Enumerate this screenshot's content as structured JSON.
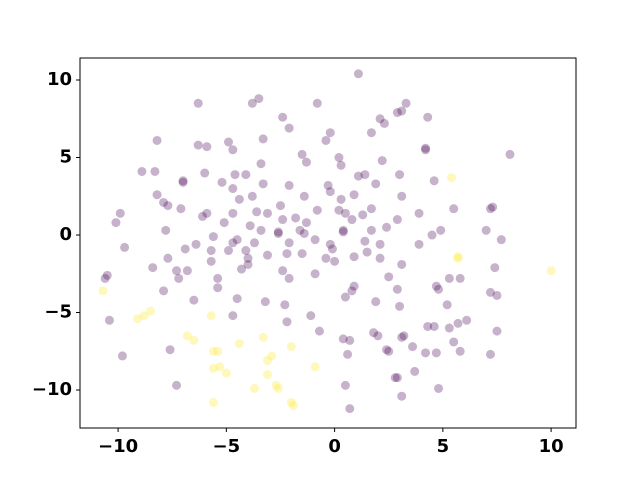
{
  "chart_data": {
    "type": "scatter",
    "xlim": [
      -11.76,
      11.15
    ],
    "ylim": [
      -12.45,
      11.42
    ],
    "xticks": [
      {
        "value": -10,
        "label": "−10"
      },
      {
        "value": -5,
        "label": "−5"
      },
      0,
      5,
      10
    ],
    "yticks": [
      {
        "value": -10,
        "label": "−10"
      },
      {
        "value": -5,
        "label": "−5"
      },
      0,
      5,
      10
    ],
    "grid": false,
    "series": [
      {
        "color": "#440154",
        "alpha": 0.3,
        "x": [
          1.1,
          -6.3,
          -3.8,
          -3.5,
          -0.8,
          3.3,
          3.1,
          2.9,
          -2.4,
          2.1,
          2.3,
          4.3,
          1.7,
          -2.1,
          -8.2,
          -3.3,
          -0.4,
          -0.2,
          -6.3,
          -5.9,
          -4.9,
          -4.7,
          4.2,
          4.2,
          -1.5,
          -1.3,
          0.2,
          -3.4,
          2.2,
          0.3,
          8.1,
          1.4,
          1.1,
          -8.9,
          -8.3,
          -7.0,
          -7.0,
          -4.6,
          -4.1,
          -6.0,
          3.0,
          4.6,
          -5.2,
          -3.3,
          -2.1,
          -0.3,
          1.9,
          -4.7,
          -8.2,
          -3.8,
          -1.4,
          -0.2,
          0.9,
          0.3,
          -7.9,
          3.1,
          -7.7,
          -4.4,
          -2.5,
          -0.8,
          0.2,
          1.7,
          5.5,
          7.3,
          7.2,
          -9.9,
          -7.1,
          -5.9,
          -6.1,
          -4.7,
          -3.6,
          -3.1,
          -1.8,
          0.5,
          0.8,
          1.3,
          3.9,
          2.9,
          -10.1,
          -5.1,
          -2.4,
          -1.3,
          -3.9,
          -3.4,
          -7.8,
          -2.6,
          -2.6,
          -1.6,
          -1.4,
          0.4,
          0.4,
          1.7,
          2.4,
          4.5,
          4.9,
          7.0,
          -4.5,
          -4.7,
          -5.6,
          -6.4,
          -4.1,
          -4.0,
          -3.7,
          -2.1,
          -0.9,
          -0.2,
          -0.1,
          1.4,
          2.1,
          3.9,
          7.7,
          -9.7,
          -6.9,
          -5.7,
          -4.9,
          -3.1,
          -2.2,
          -1.5,
          -0.4,
          0.9,
          1.5,
          2.1,
          -7.7,
          -5.7,
          -4.0,
          0.0,
          3.1,
          -8.4,
          -7.3,
          -6.8,
          -4.3,
          -2.4,
          -0.9,
          7.4,
          -10.5,
          -10.6,
          -7.2,
          -5.4,
          -2.1,
          2.5,
          5.3,
          5.8,
          0.9,
          0.8,
          -7.9,
          -5.4,
          2.9,
          4.7,
          4.8,
          7.2,
          7.5,
          -4.5,
          -6.5,
          -3.2,
          1.9,
          0.5,
          -10.4,
          -2.3,
          3.0,
          5.2,
          -4.7,
          -1.1,
          6.1,
          -2.2,
          4.3,
          4.6,
          5.7,
          5.3,
          -0.7,
          7.5,
          1.8,
          2.0,
          3.1,
          3.2,
          0.4,
          0.7,
          5.5,
          -7.6,
          2.4,
          2.5,
          3.6,
          5.8,
          4.2,
          4.7,
          7.2,
          -9.8,
          0.6,
          3.7,
          2.8,
          2.9,
          -7.3,
          0.5,
          4.8,
          3.1,
          0.7
        ],
        "values": [
          10.4,
          8.5,
          8.5,
          8.8,
          8.5,
          8.5,
          8.0,
          7.9,
          7.6,
          7.5,
          7.2,
          7.6,
          6.6,
          6.9,
          6.1,
          6.2,
          6.1,
          6.6,
          5.8,
          5.7,
          6.0,
          5.5,
          5.5,
          5.6,
          5.2,
          4.7,
          5.0,
          4.6,
          4.8,
          4.5,
          5.2,
          3.9,
          3.8,
          4.1,
          4.1,
          3.5,
          3.4,
          3.9,
          3.9,
          4.0,
          3.9,
          3.5,
          3.4,
          3.3,
          3.2,
          3.2,
          3.3,
          3.0,
          2.6,
          2.5,
          2.5,
          2.8,
          2.6,
          2.3,
          2.1,
          2.5,
          1.9,
          2.3,
          1.9,
          1.6,
          1.6,
          1.7,
          1.7,
          1.8,
          1.7,
          1.4,
          1.7,
          1.4,
          1.2,
          1.4,
          1.5,
          1.4,
          1.1,
          1.4,
          1.0,
          1.3,
          1.4,
          1.0,
          0.8,
          0.8,
          1.0,
          0.8,
          0.6,
          0.3,
          0.3,
          0.2,
          0.1,
          0.3,
          0.1,
          0.3,
          0.2,
          0.3,
          0.5,
          0.0,
          0.3,
          0.3,
          -0.3,
          -0.5,
          -0.1,
          -0.6,
          -1.0,
          -1.5,
          -0.5,
          -0.5,
          -0.3,
          -0.6,
          -0.9,
          -0.4,
          -0.6,
          -0.6,
          -0.3,
          -0.8,
          -0.9,
          -1.0,
          -1.0,
          -1.3,
          -1.2,
          -1.2,
          -1.5,
          -1.4,
          -1.1,
          -1.5,
          -1.5,
          -1.7,
          -1.9,
          -1.7,
          -1.9,
          -2.1,
          -2.3,
          -2.3,
          -2.2,
          -2.3,
          -2.5,
          -2.1,
          -2.6,
          -2.8,
          -2.8,
          -2.8,
          -2.8,
          -2.7,
          -2.8,
          -2.8,
          -3.3,
          -3.6,
          -3.6,
          -3.4,
          -3.5,
          -3.3,
          -3.5,
          -3.7,
          -3.9,
          -4.1,
          -4.2,
          -4.3,
          -4.3,
          -4.0,
          -5.5,
          -4.5,
          -4.6,
          -4.5,
          -5.2,
          -5.2,
          -5.5,
          -5.6,
          -5.9,
          -5.9,
          -5.7,
          -6.0,
          -6.2,
          -6.2,
          -6.3,
          -6.5,
          -6.6,
          -6.5,
          -6.7,
          -6.8,
          -6.9,
          -7.4,
          -7.4,
          -7.5,
          -7.2,
          -7.5,
          -7.6,
          -7.6,
          -7.7,
          -7.8,
          -7.7,
          -8.8,
          -9.2,
          -9.2,
          -9.7,
          -9.7,
          -9.9,
          -10.4,
          -11.2
        ]
      },
      {
        "color": "#fde725",
        "alpha": 0.3,
        "x": [
          5.4,
          5.7,
          5.7,
          10.0,
          -10.7,
          -8.5,
          -8.8,
          -9.1,
          -5.7,
          -6.8,
          -6.5,
          -3.3,
          -4.4,
          -5.6,
          -5.4,
          -2.0,
          -2.9,
          -3.1,
          -5.6,
          -5.3,
          -5.0,
          -0.9,
          -3.1,
          -3.7,
          -2.7,
          -2.6,
          -5.6,
          -2.0,
          -1.9
        ],
        "values": [
          3.7,
          -1.4,
          -1.5,
          -2.3,
          -3.6,
          -4.9,
          -5.2,
          -5.4,
          -5.2,
          -6.5,
          -6.8,
          -6.6,
          -7.0,
          -7.5,
          -7.5,
          -7.2,
          -7.8,
          -8.1,
          -8.6,
          -8.5,
          -8.9,
          -8.5,
          -9.0,
          -9.9,
          -9.7,
          -9.9,
          -10.8,
          -10.8,
          -11.0
        ]
      }
    ]
  }
}
